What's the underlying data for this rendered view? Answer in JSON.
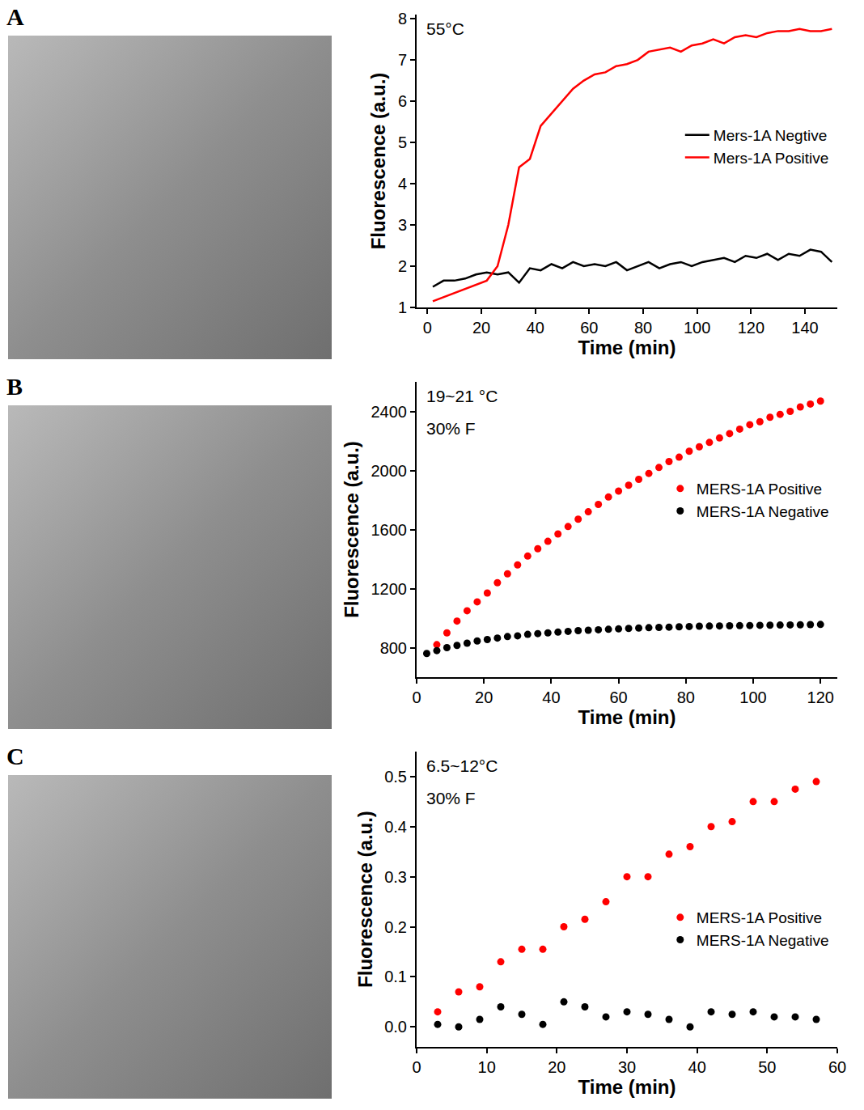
{
  "chart_data": [
    {
      "type": "line",
      "title": "A",
      "annotations": [
        "55°C"
      ],
      "x_label": "Time (min)",
      "y_label": "Fluorescence (a.u.)",
      "xlim": [
        -4,
        152
      ],
      "xticks": [
        0,
        20,
        40,
        60,
        80,
        100,
        120,
        140
      ],
      "ylim": [
        1,
        8.1
      ],
      "yticks": [
        1,
        2,
        3,
        4,
        5,
        6,
        7,
        8
      ],
      "legend": "right",
      "grid": false,
      "series": [
        {
          "name": "Mers-1A Negtive",
          "color": "#000000",
          "x": [
            2,
            6,
            10,
            14,
            18,
            22,
            26,
            30,
            34,
            38,
            42,
            46,
            50,
            54,
            58,
            62,
            66,
            70,
            74,
            78,
            82,
            86,
            90,
            94,
            98,
            102,
            106,
            110,
            114,
            118,
            122,
            126,
            130,
            134,
            138,
            142,
            146,
            150
          ],
          "values": [
            1.5,
            1.65,
            1.65,
            1.7,
            1.8,
            1.85,
            1.8,
            1.85,
            1.6,
            1.95,
            1.9,
            2.05,
            1.95,
            2.1,
            2.0,
            2.05,
            2.0,
            2.1,
            1.9,
            2.0,
            2.1,
            1.95,
            2.05,
            2.1,
            2.0,
            2.1,
            2.15,
            2.2,
            2.1,
            2.25,
            2.2,
            2.3,
            2.15,
            2.3,
            2.25,
            2.4,
            2.35,
            2.1
          ]
        },
        {
          "name": "Mers-1A Positive",
          "color": "#ff0000",
          "x": [
            2,
            6,
            10,
            14,
            18,
            22,
            26,
            30,
            34,
            38,
            42,
            46,
            50,
            54,
            58,
            62,
            66,
            70,
            74,
            78,
            82,
            86,
            90,
            94,
            98,
            102,
            106,
            110,
            114,
            118,
            122,
            126,
            130,
            134,
            138,
            142,
            146,
            150
          ],
          "values": [
            1.15,
            1.25,
            1.35,
            1.45,
            1.55,
            1.65,
            2.0,
            3.0,
            4.4,
            4.6,
            5.4,
            5.7,
            6.0,
            6.3,
            6.5,
            6.65,
            6.7,
            6.85,
            6.9,
            7.0,
            7.2,
            7.25,
            7.3,
            7.2,
            7.35,
            7.4,
            7.5,
            7.4,
            7.55,
            7.6,
            7.55,
            7.65,
            7.7,
            7.7,
            7.75,
            7.7,
            7.7,
            7.75
          ]
        }
      ]
    },
    {
      "type": "scatter",
      "title": "B",
      "annotations": [
        "19~21 °C",
        "30% F"
      ],
      "x_label": "Time (min)",
      "y_label": "Fluorescence (a.u.)",
      "xlim": [
        0,
        125
      ],
      "xticks": [
        0,
        20,
        40,
        60,
        80,
        100,
        120
      ],
      "ylim": [
        600,
        2600
      ],
      "yticks": [
        800,
        1200,
        1600,
        2000,
        2400
      ],
      "legend": "right",
      "grid": false,
      "series": [
        {
          "name": "MERS-1A Positive",
          "color": "#ff0000",
          "x": [
            6,
            9,
            12,
            15,
            18,
            21,
            24,
            27,
            30,
            33,
            36,
            39,
            42,
            45,
            48,
            51,
            54,
            57,
            60,
            63,
            66,
            69,
            72,
            75,
            78,
            81,
            84,
            87,
            90,
            93,
            96,
            99,
            102,
            105,
            108,
            111,
            114,
            117,
            120
          ],
          "values": [
            820,
            900,
            980,
            1050,
            1110,
            1170,
            1240,
            1300,
            1360,
            1420,
            1470,
            1520,
            1570,
            1620,
            1670,
            1720,
            1770,
            1820,
            1860,
            1900,
            1940,
            1980,
            2020,
            2060,
            2090,
            2130,
            2160,
            2190,
            2220,
            2250,
            2280,
            2310,
            2330,
            2360,
            2380,
            2400,
            2430,
            2450,
            2470
          ]
        },
        {
          "name": "MERS-1A Negative",
          "color": "#000000",
          "x": [
            3,
            6,
            9,
            12,
            15,
            18,
            21,
            24,
            27,
            30,
            33,
            36,
            39,
            42,
            45,
            48,
            51,
            54,
            57,
            60,
            63,
            66,
            69,
            72,
            75,
            78,
            81,
            84,
            87,
            90,
            93,
            96,
            99,
            102,
            105,
            108,
            111,
            114,
            117,
            120
          ],
          "values": [
            760,
            780,
            800,
            815,
            830,
            845,
            855,
            865,
            875,
            880,
            890,
            895,
            900,
            905,
            910,
            915,
            918,
            921,
            924,
            927,
            930,
            933,
            935,
            937,
            939,
            941,
            943,
            945,
            946,
            947,
            948,
            949,
            950,
            951,
            952,
            953,
            954,
            955,
            956,
            957
          ]
        }
      ]
    },
    {
      "type": "scatter",
      "title": "C",
      "annotations": [
        "6.5~12°C",
        "30% F"
      ],
      "x_label": "Time (min)",
      "y_label": "Fluorescence (a.u.)",
      "xlim": [
        0,
        60
      ],
      "xticks": [
        0,
        10,
        20,
        30,
        40,
        50,
        60
      ],
      "ylim": [
        -0.04,
        0.55
      ],
      "yticks": [
        {
          "value": 0,
          "label": "0.0"
        },
        0.1,
        0.2,
        0.3,
        0.4,
        0.5
      ],
      "legend": "right",
      "grid": false,
      "series": [
        {
          "name": "MERS-1A Positive",
          "color": "#ff0000",
          "x": [
            3,
            6,
            9,
            12,
            15,
            18,
            21,
            24,
            27,
            30,
            33,
            36,
            39,
            42,
            45,
            48,
            51,
            54,
            57
          ],
          "values": [
            0.03,
            0.07,
            0.08,
            0.13,
            0.155,
            0.155,
            0.2,
            0.215,
            0.25,
            0.3,
            0.3,
            0.345,
            0.36,
            0.4,
            0.41,
            0.45,
            0.45,
            0.475,
            0.49
          ]
        },
        {
          "name": "MERS-1A Negative",
          "color": "#000000",
          "x": [
            3,
            6,
            9,
            12,
            15,
            18,
            21,
            24,
            27,
            30,
            33,
            36,
            39,
            42,
            45,
            48,
            51,
            54,
            57
          ],
          "values": [
            0.005,
            0.0,
            0.015,
            0.04,
            0.025,
            0.005,
            0.05,
            0.04,
            0.02,
            0.03,
            0.025,
            0.015,
            0.0,
            0.03,
            0.025,
            0.03,
            0.02,
            0.02,
            0.015
          ]
        }
      ]
    }
  ]
}
